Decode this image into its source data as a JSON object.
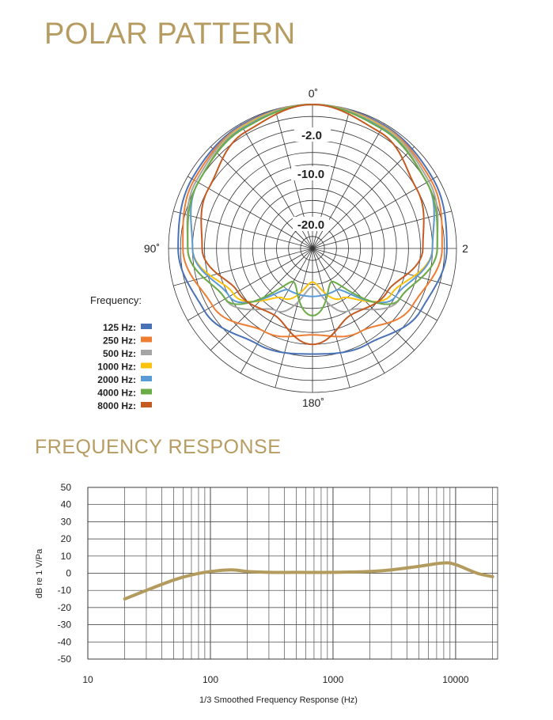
{
  "polar_section": {
    "title": "POLAR PATTERN"
  },
  "frequency_section": {
    "title": "FREQUENCY RESPONSE"
  },
  "chart_data": [
    {
      "type": "polar",
      "angle_labels": {
        "top": "0˚",
        "left": "90˚",
        "right": "2",
        "bottom": "180˚"
      },
      "radial_labels": [
        "-2.0",
        "-10.0",
        "-20.0"
      ],
      "rings": 12,
      "spokes": 24,
      "legend_title": "Frequency:",
      "series": [
        {
          "name": "125 Hz:",
          "color": "#4a72b6",
          "points": [
            [
              0,
              0
            ],
            [
              30,
              -0.3
            ],
            [
              60,
              -1
            ],
            [
              90,
              -2
            ],
            [
              120,
              -4
            ],
            [
              150,
              -7
            ],
            [
              180,
              -8
            ]
          ]
        },
        {
          "name": "250 Hz:",
          "color": "#ee7d34",
          "points": [
            [
              0,
              0
            ],
            [
              30,
              -0.5
            ],
            [
              60,
              -1.5
            ],
            [
              90,
              -3
            ],
            [
              120,
              -6
            ],
            [
              150,
              -10
            ],
            [
              180,
              -12
            ]
          ]
        },
        {
          "name": "500 Hz:",
          "color": "#a5a5a5",
          "points": [
            [
              0,
              0
            ],
            [
              30,
              -0.6
            ],
            [
              60,
              -2
            ],
            [
              90,
              -4
            ],
            [
              120,
              -9
            ],
            [
              150,
              -15
            ],
            [
              180,
              -22
            ]
          ]
        },
        {
          "name": "1000 Hz:",
          "color": "#fbc20d",
          "points": [
            [
              0,
              0
            ],
            [
              30,
              -0.8
            ],
            [
              60,
              -2.5
            ],
            [
              90,
              -5
            ],
            [
              120,
              -11
            ],
            [
              150,
              -18
            ],
            [
              180,
              -23
            ]
          ]
        },
        {
          "name": "2000 Hz:",
          "color": "#5b9bd5",
          "points": [
            [
              0,
              0
            ],
            [
              30,
              -1
            ],
            [
              60,
              -2.5
            ],
            [
              90,
              -5
            ],
            [
              120,
              -10
            ],
            [
              150,
              -20
            ],
            [
              180,
              -20
            ]
          ]
        },
        {
          "name": "4000 Hz:",
          "color": "#6aac45",
          "points": [
            [
              0,
              0
            ],
            [
              30,
              -1.2
            ],
            [
              60,
              -2.5
            ],
            [
              90,
              -4
            ],
            [
              120,
              -9
            ],
            [
              150,
              -22
            ],
            [
              180,
              -16
            ]
          ]
        },
        {
          "name": "8000 Hz:",
          "color": "#c55a22",
          "points": [
            [
              0,
              0
            ],
            [
              30,
              -2
            ],
            [
              60,
              -5
            ],
            [
              90,
              -7
            ],
            [
              120,
              -12
            ],
            [
              150,
              -14
            ],
            [
              180,
              -10
            ]
          ]
        }
      ]
    },
    {
      "type": "line",
      "xscale": "log",
      "xlim": [
        10,
        22000
      ],
      "ylim": [
        -50,
        50
      ],
      "xticks": [
        "10",
        "100",
        "1000",
        "10000"
      ],
      "yticks": [
        "50",
        "40",
        "30",
        "20",
        "10",
        "0",
        "-10",
        "-20",
        "-30",
        "-40",
        "-50"
      ],
      "xlabel": "1/3 Smoothed Frequency Response (Hz)",
      "ylabel": "dB re 1 V/Pa",
      "grid": true,
      "line_color": "#b39b5e",
      "x": [
        20,
        30,
        50,
        70,
        100,
        150,
        200,
        300,
        500,
        1000,
        2000,
        3000,
        5000,
        8000,
        10000,
        15000,
        20000
      ],
      "y": [
        -15,
        -10,
        -4,
        -1,
        1,
        2,
        1,
        0.5,
        0.5,
        0.5,
        1,
        2,
        4,
        6,
        5,
        0,
        -2
      ]
    }
  ]
}
